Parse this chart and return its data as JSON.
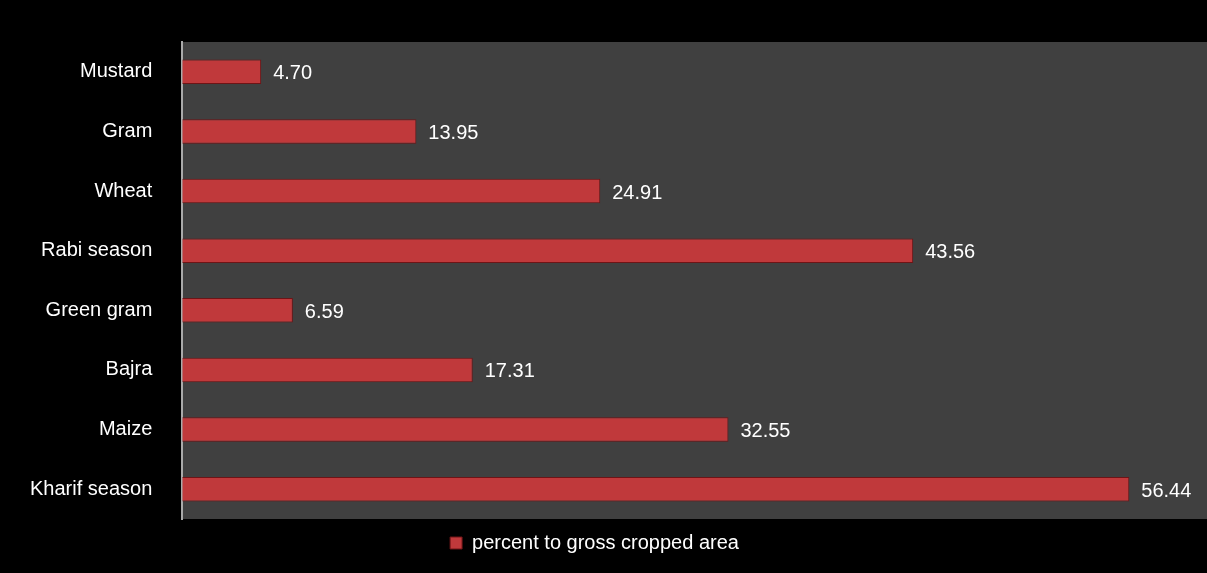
{
  "chart_data": {
    "type": "bar",
    "orientation": "horizontal",
    "categories": [
      "Mustard",
      "Gram",
      "Wheat",
      "Rabi season",
      "Green gram",
      "Bajra",
      "Maize",
      "Kharif season"
    ],
    "series": [
      {
        "name": "percent to gross cropped area",
        "color": "#c0393b",
        "values": [
          4.7,
          13.95,
          24.91,
          43.56,
          6.59,
          17.31,
          32.55,
          56.44
        ],
        "value_labels": [
          "4.70",
          "13.95",
          "24.91",
          "43.56",
          "6.59",
          "17.31",
          "32.55",
          "56.44"
        ]
      }
    ],
    "tick_labels": "y",
    "legend": "bottom"
  }
}
